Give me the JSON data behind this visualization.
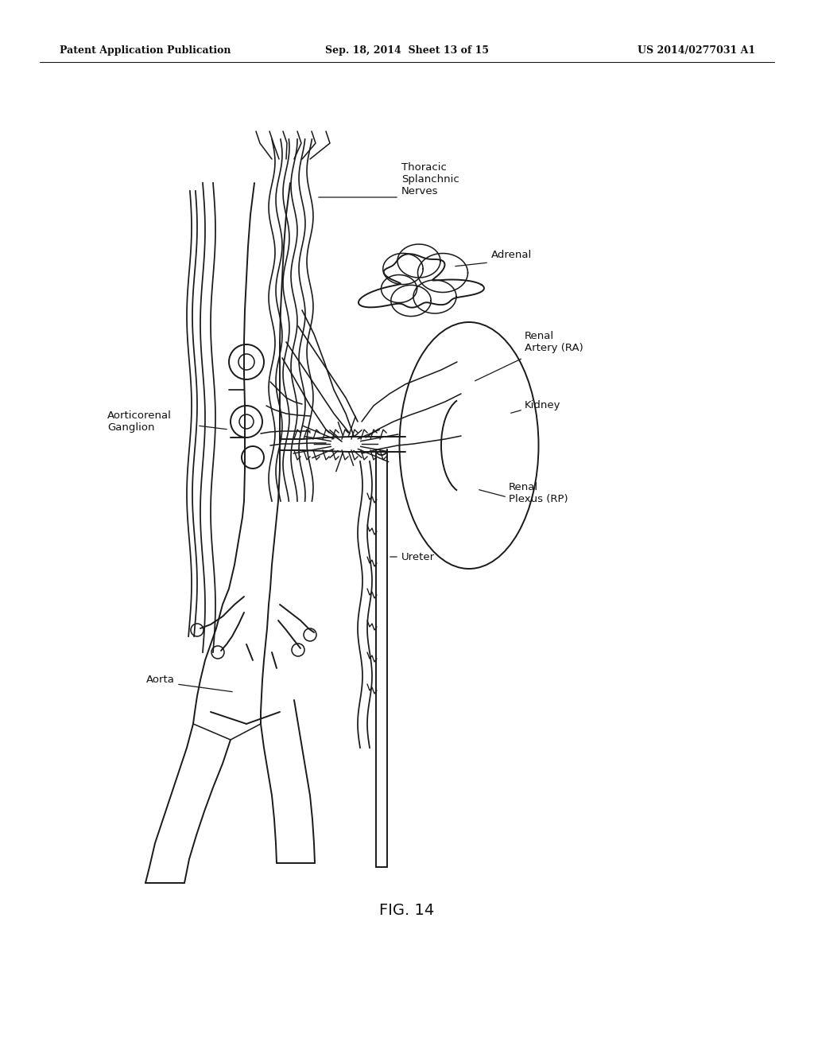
{
  "header_left": "Patent Application Publication",
  "header_center": "Sep. 18, 2014  Sheet 13 of 15",
  "header_right": "US 2014/0277031 A1",
  "background_color": "#ffffff",
  "line_color": "#1a1a1a",
  "fig_label": "FIG. 14"
}
